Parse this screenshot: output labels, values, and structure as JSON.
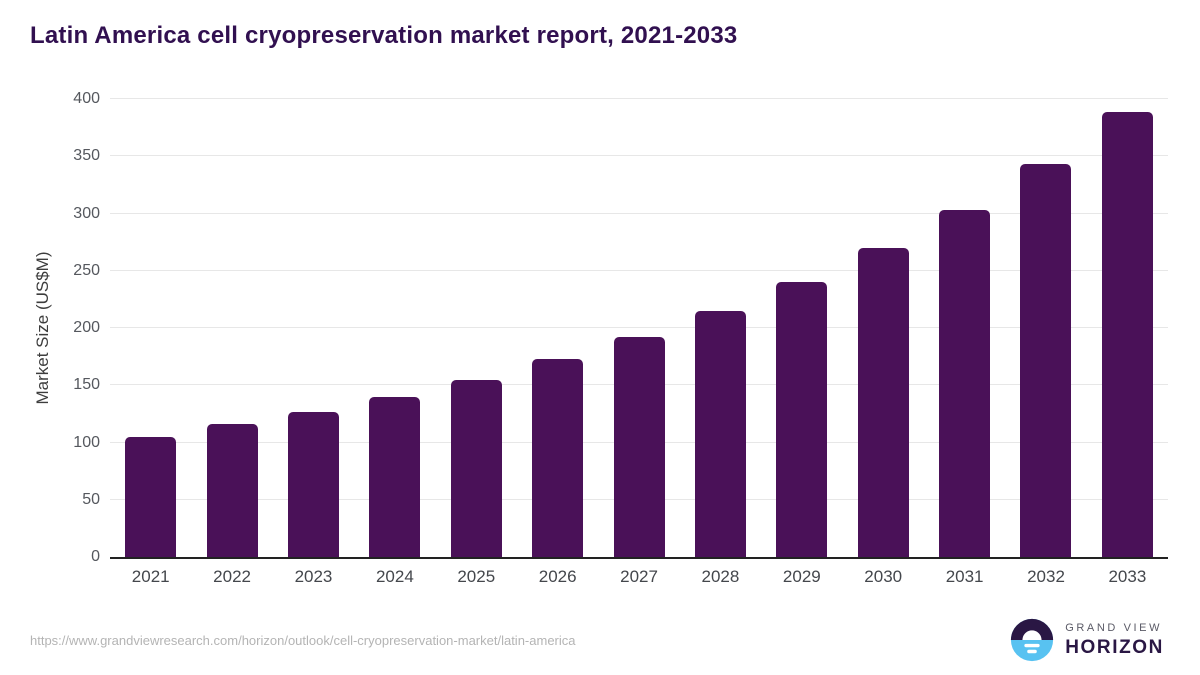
{
  "header": {
    "title": "Latin America cell cryopreservation market report, 2021-2033"
  },
  "chart_data": {
    "type": "bar",
    "title": "Latin America cell cryopreservation market report, 2021-2033",
    "categories": [
      "2021",
      "2022",
      "2023",
      "2024",
      "2025",
      "2026",
      "2027",
      "2028",
      "2029",
      "2030",
      "2031",
      "2032",
      "2033"
    ],
    "values": [
      105,
      116,
      127,
      140,
      155,
      173,
      192,
      215,
      240,
      270,
      303,
      343,
      389
    ],
    "xlabel": "",
    "ylabel": "Market Size (US$M)",
    "ylim": [
      0,
      400
    ],
    "yticks": [
      0,
      50,
      100,
      150,
      200,
      250,
      300,
      350,
      400
    ],
    "grid": "horizontal",
    "legend": "none"
  },
  "footer": {
    "source_url": "https://www.grandviewresearch.com/horizon/outlook/cell-cryopreservation-market/latin-america",
    "logo": {
      "line1": "GRAND VIEW",
      "line2": "HORIZON"
    }
  },
  "colors": {
    "bar": "#4a1158",
    "title": "#311050",
    "gridline": "#e7e7e7",
    "axis_line": "#222222",
    "tick_text": "#55585e",
    "year_text": "#44474c",
    "url_text": "#b4b4b4",
    "logo_blue": "#58c2f1",
    "logo_dark": "#2a1744",
    "logo_gray": "#5a5a66"
  }
}
